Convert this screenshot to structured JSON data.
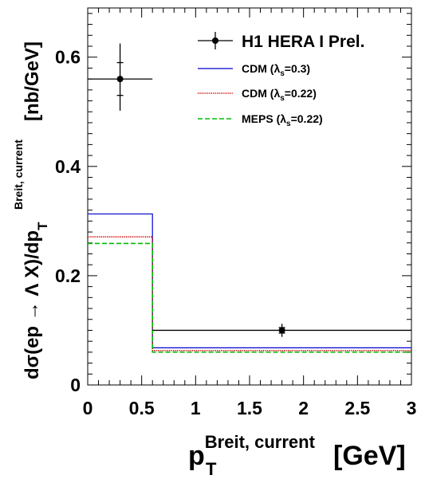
{
  "chart_data": {
    "type": "histogram",
    "xlabel": {
      "base": "p",
      "sub": "T",
      "sup": "Breit, current",
      "unit": "[GeV]"
    },
    "ylabel": {
      "prefix": "dσ(ep → Λ X)/dp",
      "sub": "T",
      "sup": "Breit, current",
      "unit": "[nb/GeV]"
    },
    "xlim": [
      0,
      3
    ],
    "ylim": [
      0,
      0.69
    ],
    "x_ticks": [
      "0",
      "0.5",
      "1",
      "1.5",
      "2",
      "2.5",
      "3"
    ],
    "y_ticks": [
      "0",
      "0.2",
      "0.4",
      "0.6"
    ],
    "bins": [
      [
        0,
        0.6
      ],
      [
        0.6,
        3
      ]
    ],
    "data": {
      "name": "H1 HERA I Prel.",
      "points": [
        {
          "x": 0.3,
          "y": 0.56,
          "xerr": [
            0.3,
            0.3
          ],
          "yerr_stat": [
            0.03,
            0.03
          ],
          "yerr_tot": [
            0.058,
            0.065
          ]
        },
        {
          "x": 1.8,
          "y": 0.1,
          "xerr": [
            1.2,
            1.2
          ],
          "yerr_stat": [
            0.005,
            0.005
          ],
          "yerr_tot": [
            0.012,
            0.012
          ]
        }
      ]
    },
    "series": [
      {
        "name_prefix": "CDM (",
        "lambda": "λ",
        "sub": "s",
        "name_suffix": "=0.3)",
        "values": [
          0.313,
          0.068
        ],
        "color": "#0000cc",
        "style": "solid"
      },
      {
        "name_prefix": "CDM (",
        "lambda": "λ",
        "sub": "s",
        "name_suffix": "=0.22)",
        "values": [
          0.271,
          0.063
        ],
        "color": "#cc0000",
        "style": "dotted"
      },
      {
        "name_prefix": "MEPS (",
        "lambda": "λ",
        "sub": "s",
        "name_suffix": "=0.22)",
        "values": [
          0.259,
          0.06
        ],
        "color": "#00bb00",
        "style": "dashed"
      }
    ],
    "legend_position": "top-right",
    "grid": false
  }
}
